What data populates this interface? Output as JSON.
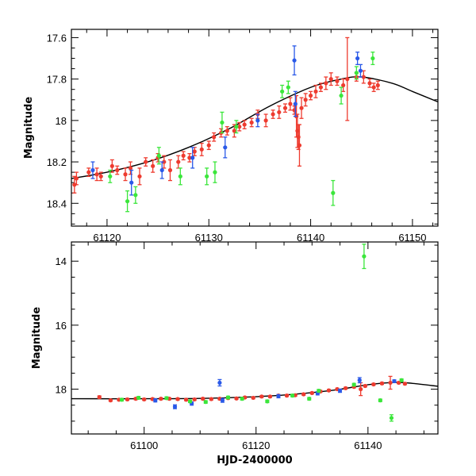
{
  "chart_data": [
    {
      "type": "scatter",
      "panel": "top",
      "title": "",
      "xlabel": "",
      "ylabel": "Magnitude",
      "xlim": [
        61116.5,
        61152.5
      ],
      "ylim": [
        17.56,
        18.51
      ],
      "y_inverted": true,
      "xticks": [
        61120,
        61130,
        61140,
        61150
      ],
      "xtick_labels": [
        "61120",
        "61130",
        "61140",
        "61150"
      ],
      "yticks": [
        17.6,
        17.8,
        18.0,
        18.2,
        18.4
      ],
      "ytick_labels": [
        "17.6",
        "17.8",
        "18",
        "18.2",
        "18.4"
      ],
      "curve": [
        [
          61116.5,
          18.28
        ],
        [
          61120,
          18.25
        ],
        [
          61124,
          18.2
        ],
        [
          61128,
          18.13
        ],
        [
          61132,
          18.04
        ],
        [
          61136,
          17.93
        ],
        [
          61140,
          17.84
        ],
        [
          61143,
          17.8
        ],
        [
          61145,
          17.79
        ],
        [
          61148,
          17.82
        ],
        [
          61150,
          17.86
        ],
        [
          61152.5,
          17.91
        ]
      ],
      "series": [
        {
          "name": "red",
          "color": "#ee3b2f",
          "points": [
            [
              61116.8,
              18.31,
              0.04
            ],
            [
              61117,
              18.28,
              0.03
            ],
            [
              61118.2,
              18.25,
              0.02
            ],
            [
              61119,
              18.26,
              0.03
            ],
            [
              61119.4,
              18.27,
              0.02
            ],
            [
              61120.5,
              18.22,
              0.03
            ],
            [
              61121,
              18.24,
              0.02
            ],
            [
              61121.8,
              18.26,
              0.03
            ],
            [
              61122.3,
              18.23,
              0.03
            ],
            [
              61123.2,
              18.27,
              0.04
            ],
            [
              61123.8,
              18.2,
              0.02
            ],
            [
              61124.5,
              18.22,
              0.03
            ],
            [
              61125,
              18.18,
              0.02
            ],
            [
              61125.6,
              18.2,
              0.03
            ],
            [
              61126.2,
              18.24,
              0.05
            ],
            [
              61127,
              18.2,
              0.03
            ],
            [
              61127.5,
              18.17,
              0.02
            ],
            [
              61128.1,
              18.18,
              0.02
            ],
            [
              61128.6,
              18.15,
              0.02
            ],
            [
              61129.3,
              18.14,
              0.03
            ],
            [
              61130,
              18.12,
              0.02
            ],
            [
              61130.5,
              18.08,
              0.02
            ],
            [
              61131.2,
              18.06,
              0.02
            ],
            [
              61131.8,
              18.05,
              0.02
            ],
            [
              61132.5,
              18.05,
              0.03
            ],
            [
              61133,
              18.03,
              0.02
            ],
            [
              61133.5,
              18.02,
              0.02
            ],
            [
              61134.2,
              18.01,
              0.02
            ],
            [
              61134.8,
              17.97,
              0.02
            ],
            [
              61135.6,
              18.0,
              0.03
            ],
            [
              61136.3,
              17.97,
              0.02
            ],
            [
              61136.9,
              17.96,
              0.03
            ],
            [
              61137.5,
              17.94,
              0.02
            ],
            [
              61138,
              17.92,
              0.03
            ],
            [
              61138.4,
              17.95,
              0.02
            ],
            [
              61138.6,
              17.98,
              0.1
            ],
            [
              61138.7,
              18.05,
              0.08
            ],
            [
              61138.8,
              18.08,
              0.06
            ],
            [
              61138.9,
              18.12,
              0.1
            ],
            [
              61139.1,
              17.94,
              0.05
            ],
            [
              61139.5,
              17.9,
              0.03
            ],
            [
              61140,
              17.88,
              0.02
            ],
            [
              61140.5,
              17.86,
              0.03
            ],
            [
              61141,
              17.84,
              0.02
            ],
            [
              61141.5,
              17.82,
              0.03
            ],
            [
              61142,
              17.8,
              0.03
            ],
            [
              61142.6,
              17.81,
              0.02
            ],
            [
              61143.2,
              17.83,
              0.03
            ],
            [
              61143.6,
              17.8,
              0.2
            ],
            [
              61144.5,
              17.79,
              0.02
            ],
            [
              61145.2,
              17.79,
              0.03
            ],
            [
              61145.8,
              17.82,
              0.02
            ],
            [
              61146.2,
              17.84,
              0.02
            ],
            [
              61146.6,
              17.83,
              0.02
            ]
          ]
        },
        {
          "name": "blue",
          "color": "#2a59e8",
          "points": [
            [
              61118.6,
              18.24,
              0.04
            ],
            [
              61122.4,
              18.3,
              0.06
            ],
            [
              61125.4,
              18.24,
              0.04
            ],
            [
              61128.4,
              18.18,
              0.05
            ],
            [
              61131.6,
              18.13,
              0.05
            ],
            [
              61134.8,
              18.0,
              0.03
            ],
            [
              61138.4,
              17.71,
              0.07
            ],
            [
              61138.5,
              17.92,
              0.06
            ],
            [
              61144.6,
              17.7,
              0.03
            ],
            [
              61144.9,
              17.76,
              0.03
            ]
          ]
        },
        {
          "name": "green",
          "color": "#3be63b",
          "points": [
            [
              61120.3,
              18.27,
              0.03
            ],
            [
              61122,
              18.39,
              0.05
            ],
            [
              61122.8,
              18.36,
              0.04
            ],
            [
              61125.1,
              18.17,
              0.04
            ],
            [
              61127.2,
              18.27,
              0.04
            ],
            [
              61129.8,
              18.27,
              0.04
            ],
            [
              61130.6,
              18.25,
              0.05
            ],
            [
              61131.3,
              18.01,
              0.05
            ],
            [
              61132.7,
              18.03,
              0.03
            ],
            [
              61137.2,
              17.86,
              0.03
            ],
            [
              61137.8,
              17.84,
              0.03
            ],
            [
              61142.2,
              18.35,
              0.06
            ],
            [
              61143,
              17.88,
              0.04
            ],
            [
              61144.5,
              17.77,
              0.03
            ],
            [
              61146.1,
              17.7,
              0.03
            ]
          ]
        }
      ]
    },
    {
      "type": "scatter",
      "panel": "bottom",
      "title": "",
      "xlabel": "HJD-2400000",
      "ylabel": "Magnitude",
      "xlim": [
        61087,
        61152.5
      ],
      "ylim": [
        13.4,
        19.4
      ],
      "y_inverted": true,
      "xticks": [
        61100,
        61120,
        61140
      ],
      "xtick_labels": [
        "61100",
        "61120",
        "61140"
      ],
      "yticks": [
        14,
        16,
        18
      ],
      "ytick_labels": [
        "14",
        "16",
        "18"
      ],
      "curve": [
        [
          61087,
          18.3
        ],
        [
          61100,
          18.3
        ],
        [
          61110,
          18.29
        ],
        [
          61118,
          18.25
        ],
        [
          61126,
          18.17
        ],
        [
          61134,
          18.03
        ],
        [
          61140,
          17.86
        ],
        [
          61145,
          17.79
        ],
        [
          61148,
          17.82
        ],
        [
          61152.5,
          17.91
        ]
      ],
      "series": [
        {
          "name": "red",
          "color": "#ee3b2f",
          "points": [
            [
              61092,
              18.25,
              0.04
            ],
            [
              61094,
              18.35,
              0.03
            ],
            [
              61095.5,
              18.33,
              0.03
            ],
            [
              61097,
              18.32,
              0.03
            ],
            [
              61098.5,
              18.3,
              0.03
            ],
            [
              61100,
              18.32,
              0.03
            ],
            [
              61101.5,
              18.31,
              0.03
            ],
            [
              61103,
              18.3,
              0.03
            ],
            [
              61104.5,
              18.3,
              0.03
            ],
            [
              61106,
              18.31,
              0.03
            ],
            [
              61107.5,
              18.33,
              0.03
            ],
            [
              61109,
              18.32,
              0.03
            ],
            [
              61110.5,
              18.3,
              0.03
            ],
            [
              61112,
              18.31,
              0.03
            ],
            [
              61113.5,
              18.3,
              0.03
            ],
            [
              61115,
              18.28,
              0.03
            ],
            [
              61116.5,
              18.29,
              0.03
            ],
            [
              61118,
              18.26,
              0.03
            ],
            [
              61119.5,
              18.27,
              0.03
            ],
            [
              61121,
              18.23,
              0.03
            ],
            [
              61122.5,
              18.23,
              0.03
            ],
            [
              61124,
              18.2,
              0.03
            ],
            [
              61125.5,
              18.2,
              0.03
            ],
            [
              61127,
              18.19,
              0.03
            ],
            [
              61128.5,
              18.16,
              0.03
            ],
            [
              61130,
              18.12,
              0.03
            ],
            [
              61131.5,
              18.07,
              0.03
            ],
            [
              61133,
              18.04,
              0.03
            ],
            [
              61134.5,
              18.0,
              0.03
            ],
            [
              61136,
              17.97,
              0.03
            ],
            [
              61137.5,
              17.93,
              0.03
            ],
            [
              61138.7,
              18.0,
              0.2
            ],
            [
              61139.5,
              17.9,
              0.03
            ],
            [
              61141,
              17.85,
              0.03
            ],
            [
              61142.5,
              17.82,
              0.03
            ],
            [
              61144,
              17.8,
              0.2
            ],
            [
              61145.5,
              17.8,
              0.03
            ],
            [
              61146.6,
              17.83,
              0.03
            ]
          ]
        },
        {
          "name": "blue",
          "color": "#2a59e8",
          "points": [
            [
              61102,
              18.35,
              0.05
            ],
            [
              61105.5,
              18.55,
              0.06
            ],
            [
              61108.5,
              18.45,
              0.05
            ],
            [
              61113.5,
              17.8,
              0.1
            ],
            [
              61114,
              18.35,
              0.06
            ],
            [
              61124,
              18.22,
              0.05
            ],
            [
              61131,
              18.13,
              0.05
            ],
            [
              61135,
              18.05,
              0.05
            ],
            [
              61138.5,
              17.72,
              0.08
            ],
            [
              61144.7,
              17.75,
              0.04
            ]
          ]
        },
        {
          "name": "green",
          "color": "#3be63b",
          "points": [
            [
              61096,
              18.33,
              0.04
            ],
            [
              61099,
              18.27,
              0.04
            ],
            [
              61104,
              18.28,
              0.04
            ],
            [
              61108.2,
              18.38,
              0.04
            ],
            [
              61111,
              18.4,
              0.04
            ],
            [
              61115,
              18.26,
              0.04
            ],
            [
              61117.5,
              18.3,
              0.04
            ],
            [
              61122,
              18.38,
              0.04
            ],
            [
              61126.5,
              18.2,
              0.04
            ],
            [
              61129.5,
              18.3,
              0.04
            ],
            [
              61131.2,
              18.05,
              0.04
            ],
            [
              61137.5,
              17.86,
              0.04
            ],
            [
              61139.3,
              13.85,
              0.38
            ],
            [
              61142.2,
              18.35,
              0.04
            ],
            [
              61144.2,
              18.9,
              0.1
            ],
            [
              61146,
              17.72,
              0.04
            ]
          ]
        }
      ]
    }
  ]
}
